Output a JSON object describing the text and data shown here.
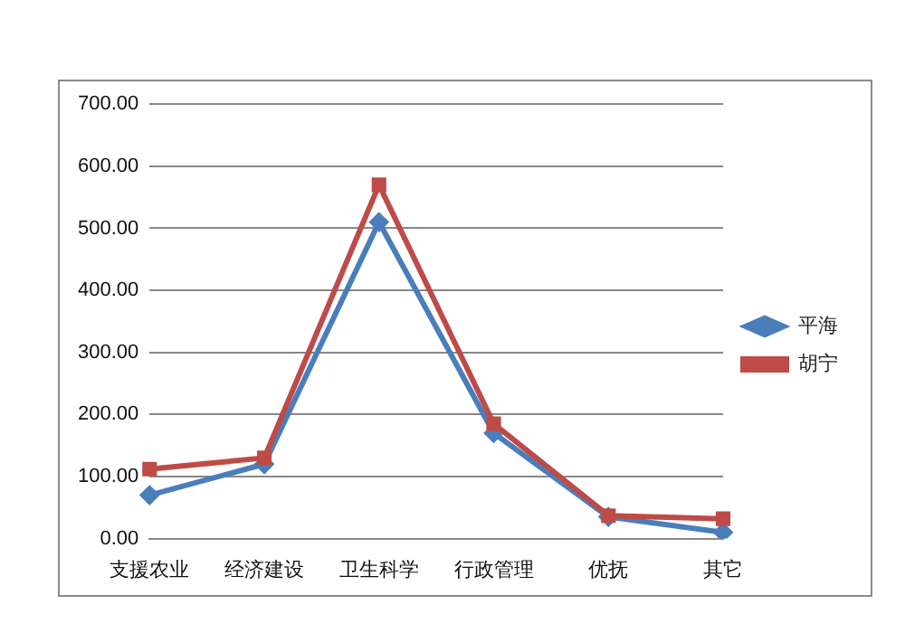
{
  "chart_data": {
    "type": "line",
    "categories": [
      "支援农业",
      "经济建设",
      "卫生科学",
      "行政管理",
      "优抚",
      "其它"
    ],
    "series": [
      {
        "name": "平海",
        "color": "#4a7ebb",
        "marker": "diamond",
        "values": [
          70,
          120,
          510,
          170,
          35,
          10
        ]
      },
      {
        "name": "胡宁",
        "color": "#be4b48",
        "marker": "square",
        "values": [
          112,
          130,
          570,
          185,
          37,
          32
        ]
      }
    ],
    "ylim": [
      0,
      700
    ],
    "yticks": [
      {
        "value": 0,
        "label": "0.00"
      },
      {
        "value": 100,
        "label": "100.00"
      },
      {
        "value": 200,
        "label": "200.00"
      },
      {
        "value": 300,
        "label": "300.00"
      },
      {
        "value": 400,
        "label": "400.00"
      },
      {
        "value": 500,
        "label": "500.00"
      },
      {
        "value": 600,
        "label": "600.00"
      },
      {
        "value": 700,
        "label": "700.00"
      }
    ],
    "grid": "y",
    "legend": "right",
    "line_style": "solid"
  }
}
